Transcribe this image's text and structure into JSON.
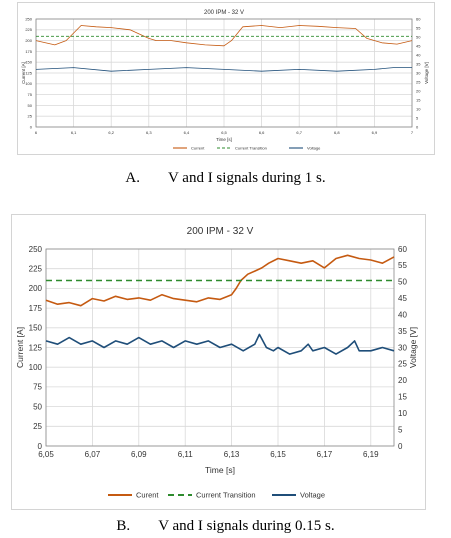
{
  "colors": {
    "current": "#c55a11",
    "transition": "#2e8b2e",
    "voltage": "#1f4e79",
    "grid": "#d9d9d9",
    "axis": "#888888"
  },
  "captions": {
    "a": {
      "letter": "A.",
      "text": "V and I signals during 1 s."
    },
    "b": {
      "letter": "B.",
      "text": "V and I signals during 0.15 s."
    }
  },
  "chart_data": [
    {
      "id": "a",
      "type": "line",
      "title": "200 IPM - 32 V",
      "xlabel": "Time [s]",
      "ylabel_left": "Current [A]",
      "ylabel_right": "Voltage [V]",
      "xlim": [
        6,
        7
      ],
      "ylim_left": [
        0,
        250
      ],
      "ylim_right": [
        0,
        60
      ],
      "x_ticks": [
        "6",
        "6,1",
        "6,2",
        "6,3",
        "6,4",
        "6,5",
        "6,6",
        "6,7",
        "6,8",
        "6,9",
        "7"
      ],
      "y_ticks_left": [
        "0",
        "25",
        "50",
        "75",
        "100",
        "125",
        "150",
        "175",
        "200",
        "225",
        "250"
      ],
      "y_ticks_right": [
        "0",
        "5",
        "10",
        "15",
        "20",
        "25",
        "30",
        "35",
        "40",
        "45",
        "50",
        "55",
        "60"
      ],
      "grid": true,
      "legend_position": "bottom",
      "legend": [
        "Current",
        "Current Transition",
        "Voltage"
      ],
      "series": [
        {
          "name": "Current",
          "axis": "left",
          "x": [
            6.0,
            6.05,
            6.08,
            6.12,
            6.16,
            6.2,
            6.25,
            6.3,
            6.32,
            6.36,
            6.4,
            6.45,
            6.5,
            6.52,
            6.55,
            6.6,
            6.65,
            6.7,
            6.75,
            6.8,
            6.85,
            6.88,
            6.92,
            6.96,
            7.0
          ],
          "y": [
            200,
            190,
            200,
            235,
            232,
            230,
            225,
            205,
            200,
            200,
            195,
            190,
            188,
            200,
            232,
            235,
            230,
            235,
            233,
            230,
            228,
            205,
            195,
            192,
            200
          ]
        },
        {
          "name": "Current Transition",
          "axis": "left",
          "x": [
            6.0,
            7.0
          ],
          "y": [
            210,
            210
          ]
        },
        {
          "name": "Voltage",
          "axis": "right",
          "x": [
            6.0,
            6.1,
            6.2,
            6.3,
            6.4,
            6.5,
            6.6,
            6.7,
            6.8,
            6.9,
            6.95,
            7.0
          ],
          "y": [
            32,
            33,
            31,
            32,
            33,
            32,
            31,
            32,
            31,
            32,
            33,
            33
          ]
        }
      ]
    },
    {
      "id": "b",
      "type": "line",
      "title": "200 IPM - 32 V",
      "xlabel": "Time [s]",
      "ylabel_left": "Current [A]",
      "ylabel_right": "Voltage [V]",
      "xlim": [
        6.05,
        6.2
      ],
      "ylim_left": [
        0,
        250
      ],
      "ylim_right": [
        0,
        60
      ],
      "x_ticks": [
        "6,05",
        "6,07",
        "6,09",
        "6,11",
        "6,13",
        "6,15",
        "6,17",
        "6,19"
      ],
      "y_ticks_left": [
        "0",
        "25",
        "50",
        "75",
        "100",
        "125",
        "150",
        "175",
        "200",
        "225",
        "250"
      ],
      "y_ticks_right": [
        "0",
        "5",
        "10",
        "15",
        "20",
        "25",
        "30",
        "35",
        "40",
        "45",
        "50",
        "55",
        "60"
      ],
      "grid": true,
      "legend_position": "bottom",
      "legend": [
        "Curent",
        "Current Transition",
        "Voltage"
      ],
      "series": [
        {
          "name": "Curent",
          "axis": "left",
          "x": [
            6.05,
            6.055,
            6.06,
            6.065,
            6.07,
            6.075,
            6.08,
            6.085,
            6.09,
            6.095,
            6.1,
            6.105,
            6.11,
            6.115,
            6.12,
            6.125,
            6.13,
            6.132,
            6.134,
            6.137,
            6.14,
            6.143,
            6.146,
            6.15,
            6.155,
            6.16,
            6.165,
            6.17,
            6.175,
            6.18,
            6.185,
            6.19,
            6.195,
            6.2
          ],
          "y": [
            185,
            180,
            182,
            178,
            187,
            184,
            190,
            186,
            188,
            185,
            192,
            187,
            185,
            183,
            188,
            186,
            192,
            200,
            210,
            218,
            222,
            226,
            232,
            238,
            235,
            232,
            235,
            226,
            238,
            242,
            238,
            236,
            232,
            240
          ]
        },
        {
          "name": "Current Transition",
          "axis": "left",
          "x": [
            6.05,
            6.2
          ],
          "y": [
            210,
            210
          ]
        },
        {
          "name": "Voltage",
          "axis": "right",
          "x": [
            6.05,
            6.055,
            6.06,
            6.065,
            6.07,
            6.075,
            6.08,
            6.085,
            6.09,
            6.095,
            6.1,
            6.105,
            6.11,
            6.115,
            6.12,
            6.125,
            6.13,
            6.135,
            6.14,
            6.142,
            6.145,
            6.148,
            6.15,
            6.155,
            6.16,
            6.163,
            6.165,
            6.17,
            6.175,
            6.18,
            6.183,
            6.185,
            6.19,
            6.195,
            6.2
          ],
          "y": [
            32,
            31,
            33,
            31,
            32,
            30,
            32,
            31,
            33,
            31,
            32,
            30,
            32,
            31,
            32,
            30,
            31,
            29,
            31,
            34,
            30,
            29,
            30,
            28,
            29,
            31,
            29,
            30,
            28,
            30,
            32,
            29,
            29,
            30,
            29
          ]
        }
      ]
    }
  ]
}
